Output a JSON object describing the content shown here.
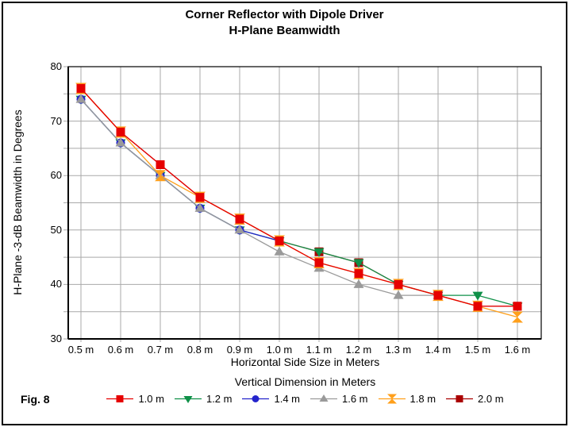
{
  "figure": {
    "fig_label": "Fig. 8"
  },
  "chart_data": {
    "type": "line",
    "title_line1": "Corner Reflector with Dipole Driver",
    "title_line2": "H-Plane Beamwidth",
    "xlabel": "Horizontal Side Size in Meters",
    "ylabel": "H-Plane -3-dB Beamwidth in Degrees",
    "legend_title": "Vertical Dimension in Meters",
    "legend_position": "bottom",
    "grid": true,
    "ylim": [
      30,
      80
    ],
    "y_ticks": [
      80,
      70,
      60,
      50,
      40,
      30
    ],
    "y_minor_grid_step": 5,
    "x_categories": [
      0.5,
      0.6,
      0.7,
      0.8,
      0.9,
      1.0,
      1.1,
      1.2,
      1.3,
      1.4,
      1.5,
      1.6
    ],
    "x_tick_labels": [
      "0.5 m",
      "0.6 m",
      "0.7 m",
      "0.8 m",
      "0.9 m",
      "1.0 m",
      "1.1 m",
      "1.2 m",
      "1.3 m",
      "1.4 m",
      "1.5 m",
      "1.6 m"
    ],
    "series": [
      {
        "name": "1.0 m",
        "marker": "square",
        "color": "#e60000",
        "values": [
          76,
          68,
          62,
          56,
          52,
          48,
          44,
          42,
          40,
          38,
          36,
          36
        ]
      },
      {
        "name": "1.2 m",
        "marker": "triangle-down",
        "color": "#0f9048",
        "values": [
          74,
          66,
          60,
          54,
          50,
          48,
          46,
          44,
          40,
          38,
          38,
          36
        ]
      },
      {
        "name": "1.4 m",
        "marker": "circle",
        "color": "#2424cc",
        "values": [
          74,
          66,
          60,
          54,
          50,
          48
        ]
      },
      {
        "name": "1.6 m",
        "marker": "triangle-up",
        "color": "#9a9a9a",
        "values": [
          74,
          66,
          60,
          54,
          50,
          46,
          43,
          40,
          38,
          38
        ]
      },
      {
        "name": "1.8 m",
        "marker": "hourglass",
        "color": "#ff9f1a",
        "values": [
          76,
          68,
          60,
          56,
          52,
          48,
          44,
          42,
          40,
          38,
          36,
          34
        ]
      },
      {
        "name": "2.0 m",
        "marker": "square",
        "color": "#aa0000",
        "values": [
          76,
          68,
          62,
          56,
          52,
          48,
          46,
          44,
          40,
          38,
          36,
          36
        ]
      }
    ],
    "draw_order": [
      5,
      1,
      2,
      3,
      4,
      0
    ],
    "colors": {
      "grid": "#a9a9a9",
      "axis": "#000000",
      "background": "#ffffff"
    }
  }
}
